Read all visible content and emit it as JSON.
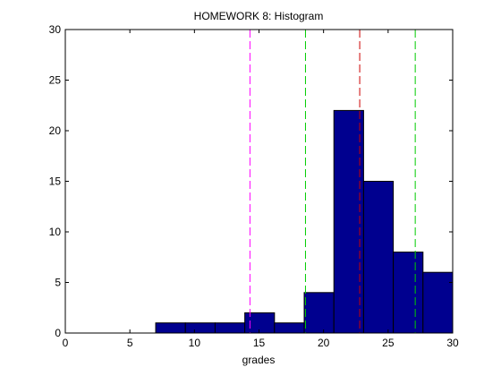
{
  "chart_data": {
    "type": "bar",
    "title": "HOMEWORK 8: Histogram",
    "xlabel": "grades",
    "ylabel": "",
    "xlim": [
      0,
      30
    ],
    "ylim": [
      0,
      30
    ],
    "xticks": [
      0,
      5,
      10,
      15,
      20,
      25,
      30
    ],
    "yticks": [
      0,
      5,
      10,
      15,
      20,
      25,
      30
    ],
    "bins": [
      {
        "start": 7.0,
        "end": 9.3,
        "count": 1
      },
      {
        "start": 9.3,
        "end": 11.6,
        "count": 1
      },
      {
        "start": 11.6,
        "end": 13.9,
        "count": 1
      },
      {
        "start": 13.9,
        "end": 16.2,
        "count": 2
      },
      {
        "start": 16.2,
        "end": 18.5,
        "count": 1
      },
      {
        "start": 18.5,
        "end": 20.8,
        "count": 4
      },
      {
        "start": 20.8,
        "end": 23.1,
        "count": 22
      },
      {
        "start": 23.1,
        "end": 25.4,
        "count": 15
      },
      {
        "start": 25.4,
        "end": 27.7,
        "count": 8
      },
      {
        "start": 27.7,
        "end": 30.0,
        "count": 6
      }
    ],
    "vertical_lines": [
      {
        "x": 14.3,
        "color": "#ff00ff",
        "style": "dashed"
      },
      {
        "x": 18.6,
        "color": "#00cc00",
        "style": "dashed"
      },
      {
        "x": 22.8,
        "color": "#cc0000",
        "style": "dashed"
      },
      {
        "x": 27.1,
        "color": "#00cc00",
        "style": "dashed"
      }
    ],
    "bar_color": "#00008f",
    "grid": false,
    "legend": "none"
  }
}
